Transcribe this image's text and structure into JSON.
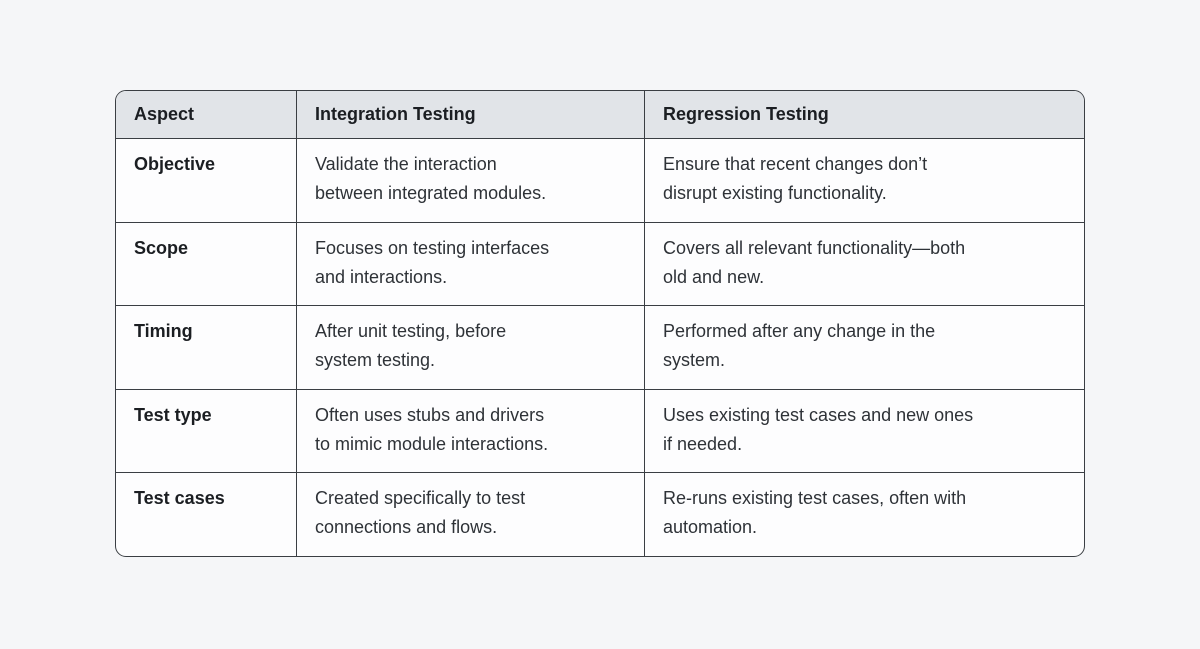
{
  "colors": {
    "page_bg": "#f5f6f8",
    "header_bg": "#e1e4e8",
    "cell_bg": "#fdfdfe",
    "border": "#3a3e43",
    "heading_text": "#1b1e22",
    "body_text": "#2e3237"
  },
  "chart_data": {
    "type": "table",
    "columns": [
      "Aspect",
      "Integration Testing",
      "Regression Testing"
    ],
    "rows": [
      [
        "Objective",
        "Validate the interaction between integrated modules.",
        "Ensure that recent changes don’t disrupt existing functionality."
      ],
      [
        "Scope",
        "Focuses on testing interfaces and interactions.",
        "Covers all relevant functionality—both old and new."
      ],
      [
        "Timing",
        "After unit testing, before system testing.",
        "Performed after any change in the system."
      ],
      [
        "Test type",
        "Often uses stubs and drivers to mimic module interactions.",
        "Uses existing test cases and new ones if needed."
      ],
      [
        "Test cases",
        "Created specifically to test connections and flows.",
        "Re-runs existing test cases, often with automation."
      ]
    ]
  },
  "table": {
    "columns": [
      "Aspect",
      "Integration Testing",
      "Regression Testing"
    ],
    "rows": [
      {
        "aspect": "Objective",
        "integration": [
          "Validate the interaction",
          "between integrated modules."
        ],
        "regression": [
          "Ensure that recent changes don’t",
          "disrupt existing functionality."
        ]
      },
      {
        "aspect": "Scope",
        "integration": [
          "Focuses on testing interfaces",
          "and interactions."
        ],
        "regression": [
          "Covers all relevant functionality—both",
          "old and new."
        ]
      },
      {
        "aspect": "Timing",
        "integration": [
          "After unit testing, before",
          "system testing."
        ],
        "regression": [
          "Performed after any change in the",
          "system."
        ]
      },
      {
        "aspect": "Test type",
        "integration": [
          "Often uses stubs and drivers",
          "to mimic module interactions."
        ],
        "regression": [
          "Uses existing test cases and new ones",
          "if needed."
        ]
      },
      {
        "aspect": "Test cases",
        "integration": [
          "Created specifically to test",
          "connections and flows."
        ],
        "regression": [
          "Re-runs existing test cases, often with",
          "automation."
        ]
      }
    ]
  }
}
